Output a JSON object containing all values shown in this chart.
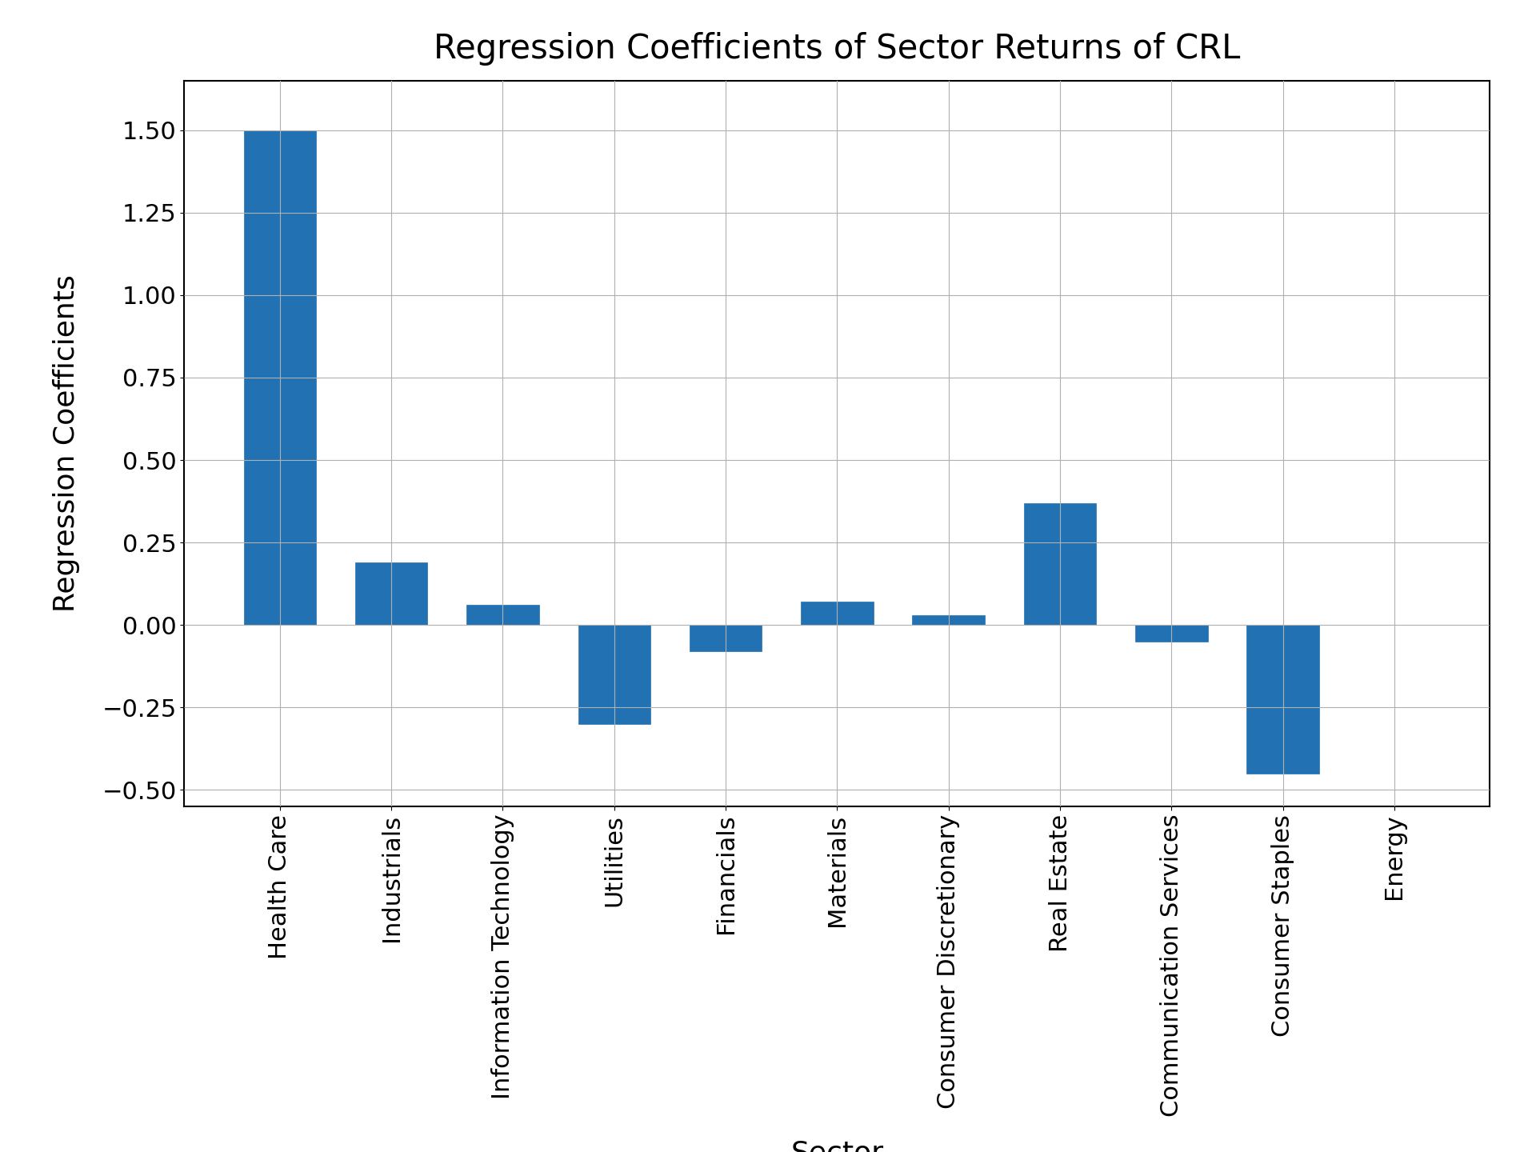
{
  "categories": [
    "Health Care",
    "Industrials",
    "Information Technology",
    "Utilities",
    "Financials",
    "Materials",
    "Consumer Discretionary",
    "Real Estate",
    "Communication Services",
    "Consumer Staples",
    "Energy"
  ],
  "values": [
    1.5,
    0.19,
    0.06,
    -0.3,
    -0.08,
    0.07,
    0.03,
    0.37,
    -0.05,
    -0.45,
    0.0
  ],
  "bar_color": "#2271b3",
  "title": "Regression Coefficients of Sector Returns of CRL",
  "xlabel": "Sector",
  "ylabel": "Regression Coefficients",
  "ylim": [
    -0.55,
    1.65
  ],
  "title_fontsize": 30,
  "label_fontsize": 26,
  "tick_fontsize": 22,
  "grid": true,
  "background_color": "#ffffff",
  "bar_width": 0.65
}
